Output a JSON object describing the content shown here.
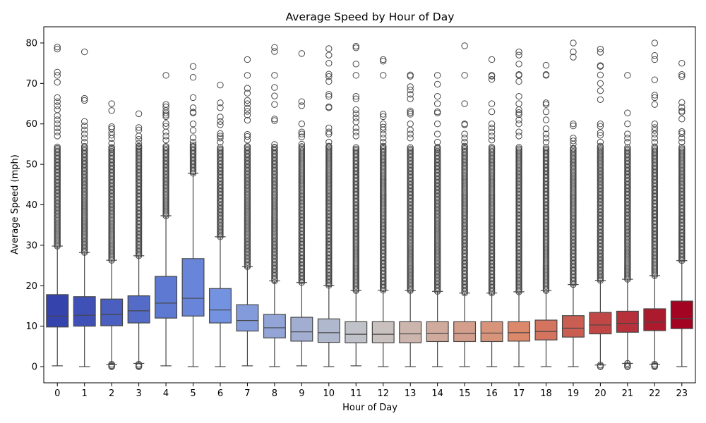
{
  "chart_data": {
    "type": "box",
    "title": "Average Speed by Hour of Day",
    "xlabel": "Hour of Day",
    "ylabel": "Average Speed (mph)",
    "ylim": [
      -4,
      84
    ],
    "yticks": [
      0,
      10,
      20,
      30,
      40,
      50,
      60,
      70,
      80
    ],
    "grid": false,
    "colormap": "coolwarm",
    "categories": [
      "0",
      "1",
      "2",
      "3",
      "4",
      "5",
      "6",
      "7",
      "8",
      "9",
      "10",
      "11",
      "12",
      "13",
      "14",
      "15",
      "16",
      "17",
      "18",
      "19",
      "20",
      "21",
      "22",
      "23"
    ],
    "boxes": [
      {
        "min": 0.2,
        "q1": 9.8,
        "median": 12.5,
        "q3": 17.8,
        "upper_whisker": 29.8,
        "outlier_start": 29.8,
        "outliers": [
          79,
          78.5,
          72.8,
          72,
          70.3,
          66.5,
          65.5,
          64.5,
          63.5,
          62,
          61,
          60,
          59,
          58,
          57
        ]
      },
      {
        "min": 0,
        "q1": 10,
        "median": 12.7,
        "q3": 17.3,
        "upper_whisker": 28.2,
        "outlier_start": 28.2,
        "outliers": [
          77.8,
          66.3,
          65.8,
          60.6,
          59.5,
          58.5,
          57.5,
          56.5,
          55.5
        ]
      },
      {
        "min": 0.5,
        "q1": 10.1,
        "median": 12.9,
        "q3": 16.7,
        "upper_whisker": 26.3,
        "outlier_start": 26.3,
        "outliers": [
          65,
          63.3,
          59.3,
          58.8,
          57.9,
          57.2,
          56.4,
          55.2,
          54.2
        ],
        "low_outliers": [
          0.6,
          0.3,
          0.1,
          0
        ]
      },
      {
        "min": 0.8,
        "q1": 10.8,
        "median": 13.8,
        "q3": 17.5,
        "upper_whisker": 27.4,
        "outlier_start": 27.4,
        "outliers": [
          62.5,
          59.1,
          58.5,
          57,
          56.2,
          55.2,
          54.5
        ],
        "low_outliers": [
          0.6,
          0.3,
          0.1,
          0
        ]
      },
      {
        "min": 0.2,
        "q1": 12,
        "median": 15.7,
        "q3": 22.3,
        "upper_whisker": 37.3,
        "outlier_start": 37.3,
        "outliers": [
          72,
          64.8,
          64.2,
          63.3,
          62.7,
          62.2,
          61.8,
          60.1,
          59.4,
          58,
          57,
          56
        ]
      },
      {
        "min": 0,
        "q1": 12.5,
        "median": 16.9,
        "q3": 26.7,
        "upper_whisker": 47.8,
        "outlier_start": 47.8,
        "outliers": [
          74.2,
          71.5,
          66.5,
          64,
          62.9,
          62.7,
          60,
          58.4,
          56.6,
          55.5,
          54.8
        ]
      },
      {
        "min": 0,
        "q1": 10.8,
        "median": 14,
        "q3": 19.3,
        "upper_whisker": 32.1,
        "outlier_start": 32.1,
        "outliers": [
          69.6,
          65.2,
          64,
          61.7,
          60.6,
          59.8,
          57.6,
          57,
          56.5,
          55.5
        ]
      },
      {
        "min": 0.2,
        "q1": 8.8,
        "median": 11.4,
        "q3": 15.3,
        "upper_whisker": 24.7,
        "outlier_start": 24.7,
        "outliers": [
          75.9,
          72,
          68.8,
          67.6,
          65.8,
          65,
          63.9,
          63.1,
          62.2,
          60.9,
          57.4,
          56.9,
          56
        ]
      },
      {
        "min": 0,
        "q1": 7.1,
        "median": 9.6,
        "q3": 12.9,
        "upper_whisker": 21.2,
        "outlier_start": 21.2,
        "outliers": [
          78.9,
          77.9,
          72,
          69,
          66.9,
          64.8,
          61.2,
          60.8,
          54.9,
          54.2
        ]
      },
      {
        "min": 0.2,
        "q1": 6.3,
        "median": 8.6,
        "q3": 12.2,
        "upper_whisker": 20.8,
        "outlier_start": 20.8,
        "outliers": [
          77.4,
          65.5,
          64.5,
          60,
          58,
          57.5,
          56.8,
          55
        ]
      },
      {
        "min": 0,
        "q1": 6,
        "median": 8.4,
        "q3": 11.8,
        "upper_whisker": 20.1,
        "outlier_start": 20.1,
        "outliers": [
          78.6,
          77,
          75,
          72.3,
          71.7,
          70.5,
          67.3,
          66.8,
          64.2,
          64,
          59,
          58,
          57.5,
          55.5,
          54.5
        ]
      },
      {
        "min": 0.2,
        "q1": 5.9,
        "median": 8,
        "q3": 11.1,
        "upper_whisker": 18.8,
        "outlier_start": 18.8,
        "outliers": [
          79.2,
          78.8,
          74.8,
          72,
          66.8,
          66.2,
          63.5,
          62.5,
          61.5,
          60.5,
          59,
          58,
          57
        ]
      },
      {
        "min": 0,
        "q1": 5.9,
        "median": 8,
        "q3": 11.1,
        "upper_whisker": 18.9,
        "outlier_start": 18.9,
        "outliers": [
          75.9,
          75.5,
          72,
          62.4,
          61.8,
          60,
          59.2,
          58.5,
          57.5,
          56.5,
          55.5,
          54.5
        ]
      },
      {
        "min": 0,
        "q1": 5.9,
        "median": 8.1,
        "q3": 11.1,
        "upper_whisker": 18.8,
        "outlier_start": 18.8,
        "outliers": [
          72.1,
          71.8,
          69.2,
          68.4,
          67.3,
          66.2,
          63.2,
          62.8,
          62.4,
          60,
          58.5,
          57.5,
          56.5
        ]
      },
      {
        "min": 0,
        "q1": 6.2,
        "median": 8.2,
        "q3": 11.1,
        "upper_whisker": 18.6,
        "outlier_start": 18.6,
        "outliers": [
          72,
          69.8,
          66.8,
          65,
          63,
          62.7,
          60,
          57.5,
          55.5,
          54.2
        ]
      },
      {
        "min": 0,
        "q1": 6.2,
        "median": 8.2,
        "q3": 11.1,
        "upper_whisker": 18.2,
        "outlier_start": 18.2,
        "outliers": [
          79.3,
          72,
          65,
          60,
          59.8,
          57.5,
          56.5,
          55.5,
          54.5
        ]
      },
      {
        "min": 0,
        "q1": 6.2,
        "median": 8.3,
        "q3": 11.1,
        "upper_whisker": 18.2,
        "outlier_start": 18.2,
        "outliers": [
          75.9,
          72,
          71.8,
          71,
          65,
          63,
          60,
          59,
          58,
          57,
          56
        ]
      },
      {
        "min": 0,
        "q1": 6.3,
        "median": 8.4,
        "q3": 11.1,
        "upper_whisker": 18.5,
        "outlier_start": 18.5,
        "outliers": [
          77.8,
          77,
          74.8,
          72.2,
          72,
          70.5,
          66.8,
          65,
          63.5,
          62.8,
          62.3,
          61,
          60,
          58,
          57
        ]
      },
      {
        "min": 0,
        "q1": 6.6,
        "median": 8.7,
        "q3": 11.5,
        "upper_whisker": 18.8,
        "outlier_start": 18.8,
        "outliers": [
          74.5,
          72.2,
          72,
          65.2,
          64.8,
          63,
          61,
          58.8,
          57.5,
          56.5,
          55.5
        ]
      },
      {
        "min": 0,
        "q1": 7.3,
        "median": 9.5,
        "q3": 12.6,
        "upper_whisker": 20.3,
        "outlier_start": 20.3,
        "outliers": [
          80,
          77.8,
          76.5,
          60,
          59.5,
          56.5,
          55.8,
          55,
          54
        ]
      },
      {
        "min": 0.4,
        "q1": 8.1,
        "median": 10.3,
        "q3": 13.4,
        "upper_whisker": 21.3,
        "outlier_start": 21.3,
        "outliers": [
          78.5,
          77.7,
          74.4,
          74.2,
          72.1,
          70,
          68.2,
          66,
          60,
          59.4,
          57.8,
          57.2,
          55.5,
          54.5
        ],
        "low_outliers": [
          0.4,
          0.1,
          0
        ]
      },
      {
        "min": 0.8,
        "q1": 8.5,
        "median": 10.7,
        "q3": 13.7,
        "upper_whisker": 21.6,
        "outlier_start": 21.6,
        "outliers": [
          72,
          62.7,
          60,
          57.5,
          56.5,
          55.5
        ],
        "low_outliers": [
          0.8,
          0.4,
          0.1,
          0
        ]
      },
      {
        "min": 0.6,
        "q1": 8.9,
        "median": 11,
        "q3": 14.3,
        "upper_whisker": 22.5,
        "outlier_start": 22.5,
        "outliers": [
          80,
          76.9,
          75.9,
          70.9,
          67.1,
          66.5,
          64.8,
          60,
          59.1,
          58.4,
          57.5,
          56.5,
          55.5
        ],
        "low_outliers": [
          0.6,
          0.3,
          0.1,
          0
        ]
      },
      {
        "min": 0,
        "q1": 9.4,
        "median": 11.9,
        "q3": 16.2,
        "upper_whisker": 26.2,
        "outlier_start": 26.2,
        "outliers": [
          75,
          72.2,
          71.7,
          65.3,
          64.1,
          63.2,
          62.9,
          61.2,
          58.1,
          57.6,
          56.5,
          55.5
        ]
      }
    ]
  }
}
